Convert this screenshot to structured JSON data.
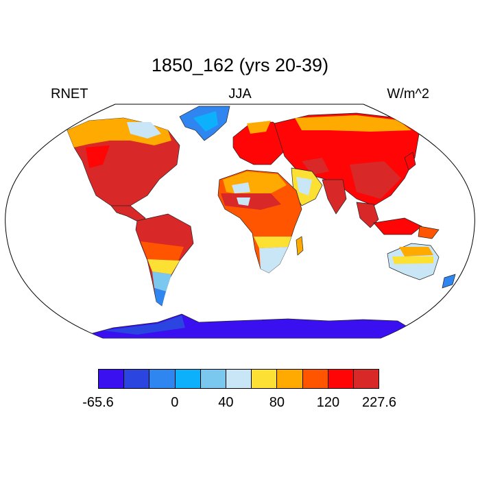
{
  "title": "1850_162 (yrs 20-39)",
  "header": {
    "left": "RNET",
    "center": "JJA",
    "right": "W/m^2"
  },
  "colorbar": {
    "colors": [
      "#3a10f0",
      "#2b45e0",
      "#2f86f0",
      "#0db0fb",
      "#7ac8f0",
      "#c9e6f7",
      "#fde034",
      "#ffaa00",
      "#ff5500",
      "#ff0505",
      "#d82828"
    ],
    "labels": [
      {
        "text": "-65.6",
        "boundary": 0
      },
      {
        "text": "0",
        "boundary": 3
      },
      {
        "text": "40",
        "boundary": 5
      },
      {
        "text": "80",
        "boundary": 7
      },
      {
        "text": "120",
        "boundary": 9
      },
      {
        "text": "227.6",
        "boundary": 11
      }
    ]
  }
}
